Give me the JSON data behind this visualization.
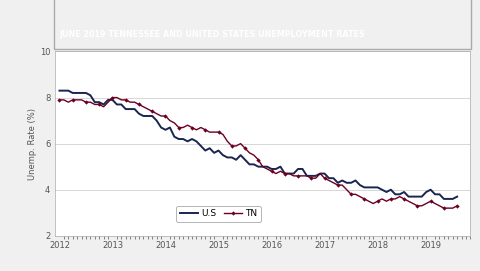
{
  "title": "JUNE 2019 TENNESSEE AND UNITED STATES UNEMPLOYMENT RATES",
  "title_bg": "#2e4479",
  "title_color": "#ffffff",
  "ylabel": "Unemp. Rate (%)",
  "ylim": [
    2.0,
    10.0
  ],
  "yticks": [
    2.0,
    4.0,
    6.0,
    8.0,
    10.0
  ],
  "xlim_start": 2011.92,
  "xlim_end": 2019.75,
  "plot_bg": "#ffffff",
  "us_color": "#1a2550",
  "tn_color": "#6b0020",
  "us_label": "U.S",
  "tn_label": "TN",
  "us_data_x": [
    2012.0,
    2012.083,
    2012.167,
    2012.25,
    2012.333,
    2012.417,
    2012.5,
    2012.583,
    2012.667,
    2012.75,
    2012.833,
    2012.917,
    2013.0,
    2013.083,
    2013.167,
    2013.25,
    2013.333,
    2013.417,
    2013.5,
    2013.583,
    2013.667,
    2013.75,
    2013.833,
    2013.917,
    2014.0,
    2014.083,
    2014.167,
    2014.25,
    2014.333,
    2014.417,
    2014.5,
    2014.583,
    2014.667,
    2014.75,
    2014.833,
    2014.917,
    2015.0,
    2015.083,
    2015.167,
    2015.25,
    2015.333,
    2015.417,
    2015.5,
    2015.583,
    2015.667,
    2015.75,
    2015.833,
    2015.917,
    2016.0,
    2016.083,
    2016.167,
    2016.25,
    2016.333,
    2016.417,
    2016.5,
    2016.583,
    2016.667,
    2016.75,
    2016.833,
    2016.917,
    2017.0,
    2017.083,
    2017.167,
    2017.25,
    2017.333,
    2017.417,
    2017.5,
    2017.583,
    2017.667,
    2017.75,
    2017.833,
    2017.917,
    2018.0,
    2018.083,
    2018.167,
    2018.25,
    2018.333,
    2018.417,
    2018.5,
    2018.583,
    2018.667,
    2018.75,
    2018.833,
    2018.917,
    2019.0,
    2019.083,
    2019.167,
    2019.25,
    2019.333,
    2019.417,
    2019.5
  ],
  "us_data_y": [
    8.3,
    8.3,
    8.3,
    8.2,
    8.2,
    8.2,
    8.2,
    8.1,
    7.8,
    7.8,
    7.7,
    7.9,
    7.9,
    7.7,
    7.7,
    7.5,
    7.5,
    7.5,
    7.3,
    7.2,
    7.2,
    7.2,
    7.0,
    6.7,
    6.6,
    6.7,
    6.3,
    6.2,
    6.2,
    6.1,
    6.2,
    6.1,
    5.9,
    5.7,
    5.8,
    5.6,
    5.7,
    5.5,
    5.4,
    5.4,
    5.3,
    5.5,
    5.3,
    5.1,
    5.1,
    5.0,
    5.0,
    5.0,
    4.9,
    4.9,
    5.0,
    4.7,
    4.7,
    4.7,
    4.9,
    4.9,
    4.6,
    4.6,
    4.6,
    4.7,
    4.7,
    4.5,
    4.5,
    4.3,
    4.4,
    4.3,
    4.3,
    4.4,
    4.2,
    4.1,
    4.1,
    4.1,
    4.1,
    4.0,
    3.9,
    4.0,
    3.8,
    3.8,
    3.9,
    3.7,
    3.7,
    3.7,
    3.7,
    3.9,
    4.0,
    3.8,
    3.8,
    3.6,
    3.6,
    3.6,
    3.7
  ],
  "tn_data_x": [
    2012.0,
    2012.083,
    2012.167,
    2012.25,
    2012.333,
    2012.417,
    2012.5,
    2012.583,
    2012.667,
    2012.75,
    2012.833,
    2012.917,
    2013.0,
    2013.083,
    2013.167,
    2013.25,
    2013.333,
    2013.417,
    2013.5,
    2013.583,
    2013.667,
    2013.75,
    2013.833,
    2013.917,
    2014.0,
    2014.083,
    2014.167,
    2014.25,
    2014.333,
    2014.417,
    2014.5,
    2014.583,
    2014.667,
    2014.75,
    2014.833,
    2014.917,
    2015.0,
    2015.083,
    2015.167,
    2015.25,
    2015.333,
    2015.417,
    2015.5,
    2015.583,
    2015.667,
    2015.75,
    2015.833,
    2015.917,
    2016.0,
    2016.083,
    2016.167,
    2016.25,
    2016.333,
    2016.417,
    2016.5,
    2016.583,
    2016.667,
    2016.75,
    2016.833,
    2016.917,
    2017.0,
    2017.083,
    2017.167,
    2017.25,
    2017.333,
    2017.417,
    2017.5,
    2017.583,
    2017.667,
    2017.75,
    2017.833,
    2017.917,
    2018.0,
    2018.083,
    2018.167,
    2018.25,
    2018.333,
    2018.417,
    2018.5,
    2018.583,
    2018.667,
    2018.75,
    2018.833,
    2018.917,
    2019.0,
    2019.083,
    2019.167,
    2019.25,
    2019.333,
    2019.417,
    2019.5
  ],
  "tn_data_y": [
    7.9,
    7.9,
    7.8,
    7.9,
    7.9,
    7.9,
    7.8,
    7.8,
    7.7,
    7.7,
    7.6,
    7.8,
    8.0,
    8.0,
    7.9,
    7.9,
    7.8,
    7.8,
    7.7,
    7.6,
    7.5,
    7.4,
    7.3,
    7.2,
    7.2,
    7.0,
    6.9,
    6.7,
    6.7,
    6.8,
    6.7,
    6.6,
    6.7,
    6.6,
    6.5,
    6.5,
    6.5,
    6.4,
    6.1,
    5.9,
    5.9,
    6.0,
    5.8,
    5.6,
    5.5,
    5.3,
    5.0,
    4.9,
    4.8,
    4.7,
    4.8,
    4.7,
    4.7,
    4.6,
    4.6,
    4.6,
    4.6,
    4.5,
    4.5,
    4.7,
    4.5,
    4.4,
    4.3,
    4.2,
    4.2,
    4.0,
    3.8,
    3.8,
    3.7,
    3.6,
    3.5,
    3.4,
    3.5,
    3.6,
    3.5,
    3.6,
    3.6,
    3.7,
    3.6,
    3.5,
    3.4,
    3.3,
    3.3,
    3.4,
    3.5,
    3.4,
    3.3,
    3.2,
    3.2,
    3.2,
    3.3
  ],
  "grid_color": "#c8c8c8",
  "tick_color": "#555555",
  "outer_bg": "#f0f0f0",
  "border_color": "#aaaaaa"
}
